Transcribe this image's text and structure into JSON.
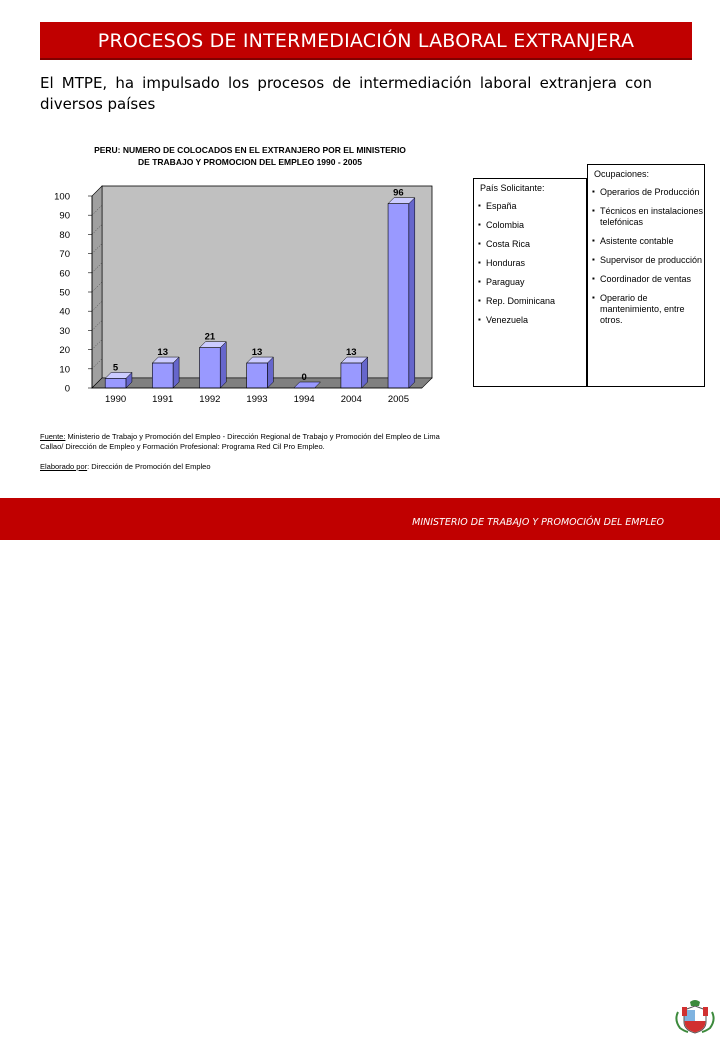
{
  "slide": {
    "title": "PROCESOS DE INTERMEDIACIÓN LABORAL EXTRANJERA",
    "intro_line1": "El  MTPE,  ha  impulsado  los  procesos  de  intermediación  laboral  extranjera  con",
    "intro_line2": "diversos países"
  },
  "chart_data": {
    "type": "bar",
    "title_line1": "PERU: NUMERO DE COLOCADOS EN EL EXTRANJERO POR EL MINISTERIO",
    "title_line2": "DE TRABAJO Y PROMOCION DEL EMPLEO 1990 - 2005",
    "categories": [
      "1990",
      "1991",
      "1992",
      "1993",
      "1994",
      "2004",
      "2005"
    ],
    "values": [
      5,
      13,
      21,
      13,
      0,
      13,
      96
    ],
    "ylim": [
      0,
      100
    ],
    "yticks": [
      0,
      10,
      20,
      30,
      40,
      50,
      60,
      70,
      80,
      90,
      100
    ],
    "grid": false,
    "bar_color": "#9999ff",
    "background": "#c0c0c0"
  },
  "paises": {
    "header": "País Solicitante:",
    "items": [
      "España",
      "Colombia",
      "Costa Rica",
      "Honduras",
      "Paraguay",
      "Rep. Dominicana",
      "Venezuela"
    ]
  },
  "ocupaciones": {
    "header": "Ocupaciones:",
    "items": [
      "Operarios de Producción",
      "Técnicos en instalaciones telefónicas",
      "Asistente contable",
      "Supervisor de producción",
      "Coordinador de ventas",
      "Operario de mantenimiento, entre otros."
    ]
  },
  "notes": {
    "fuente_label": "Fuente:",
    "fuente_text": " Ministerio de Trabajo y Promoción del Empleo - Dirección Regional de Trabajo y Promoción del Empleo de Lima Callao/ Dirección de Empleo y Formación Profesional: Programa Red Cil Pro Empleo.",
    "elab_label": "Elaborado por",
    "elab_text": ": Dirección de Promoción del Empleo"
  },
  "footer": {
    "text": "MINISTERIO DE TRABAJO Y PROMOCIÓN DEL EMPLEO"
  },
  "colors": {
    "brand_red": "#c00000"
  }
}
